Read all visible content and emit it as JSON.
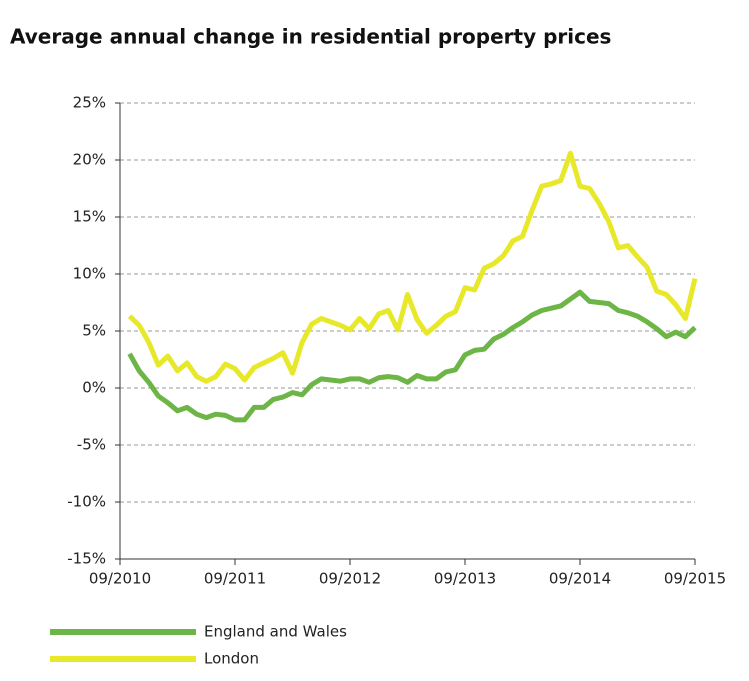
{
  "chart_data": {
    "type": "line",
    "title": "Average annual change in residential property prices",
    "categories": [
      "09/2010",
      null,
      null,
      null,
      null,
      null,
      null,
      null,
      null,
      null,
      null,
      null,
      "09/2011",
      null,
      null,
      null,
      null,
      null,
      null,
      null,
      null,
      null,
      null,
      null,
      "09/2012",
      null,
      null,
      null,
      null,
      null,
      null,
      null,
      null,
      null,
      null,
      null,
      "09/2013",
      null,
      null,
      null,
      null,
      null,
      null,
      null,
      null,
      null,
      null,
      null,
      "09/2014",
      null,
      null,
      null,
      null,
      null,
      null,
      null,
      null,
      null,
      null,
      null,
      "09/2015"
    ],
    "series": [
      {
        "name": "England and Wales",
        "color": "#6cb546",
        "values": [
          null,
          3.0,
          1.5,
          0.5,
          -0.7,
          -1.3,
          -2.0,
          -1.7,
          -2.3,
          -2.6,
          -2.3,
          -2.4,
          -2.8,
          -2.8,
          -1.7,
          -1.7,
          -1.0,
          -0.8,
          -0.4,
          -0.6,
          0.3,
          0.8,
          0.7,
          0.6,
          0.8,
          0.8,
          0.5,
          0.9,
          1.0,
          0.9,
          0.5,
          1.1,
          0.8,
          0.8,
          1.4,
          1.6,
          2.9,
          3.3,
          3.4,
          4.3,
          4.7,
          5.3,
          5.8,
          6.4,
          6.8,
          7.0,
          7.2,
          7.8,
          8.4,
          7.6,
          7.5,
          7.4,
          6.8,
          6.6,
          6.3,
          5.8,
          5.2,
          4.5,
          4.9,
          4.5,
          5.3
        ]
      },
      {
        "name": "London",
        "color": "#e8e82a",
        "values": [
          null,
          6.3,
          5.5,
          4.0,
          2.0,
          2.8,
          1.5,
          2.2,
          1.0,
          0.6,
          1.0,
          2.1,
          1.7,
          0.7,
          1.8,
          2.2,
          2.6,
          3.1,
          1.3,
          4.0,
          5.6,
          6.1,
          5.8,
          5.5,
          5.1,
          6.1,
          5.2,
          6.5,
          6.8,
          5.1,
          8.2,
          6.0,
          4.8,
          5.5,
          6.3,
          6.7,
          8.8,
          8.6,
          10.5,
          10.9,
          11.6,
          12.9,
          13.3,
          15.6,
          17.7,
          17.9,
          18.2,
          20.6,
          17.7,
          17.5,
          16.2,
          14.6,
          12.3,
          12.5,
          11.5,
          10.6,
          8.5,
          8.2,
          7.3,
          6.1,
          9.6
        ]
      }
    ],
    "ylim": [
      -15,
      25
    ],
    "yticks": [
      {
        "value": -15,
        "label": "-15%"
      },
      {
        "value": -10,
        "label": "-10%"
      },
      {
        "value": -5,
        "label": "-5%"
      },
      {
        "value": 0,
        "label": "0%"
      },
      {
        "value": 5,
        "label": "5%"
      },
      {
        "value": 10,
        "label": "10%"
      },
      {
        "value": 15,
        "label": "15%"
      },
      {
        "value": 20,
        "label": "20%"
      },
      {
        "value": 25,
        "label": "25%"
      }
    ],
    "grid": true,
    "legend": "bottom-left"
  }
}
